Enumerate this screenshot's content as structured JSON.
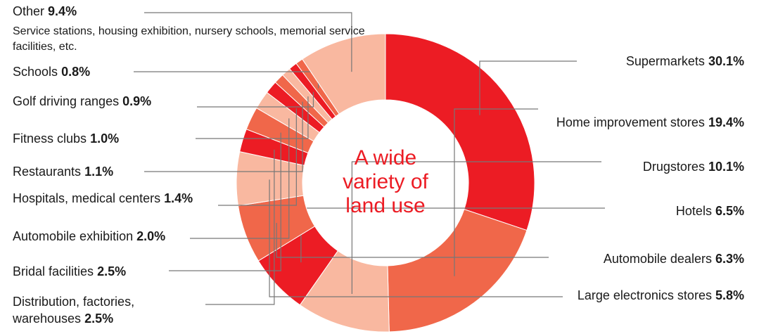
{
  "chart_data": {
    "type": "donut",
    "categories": [
      "Supermarkets",
      "Home improvement stores",
      "Drugstores",
      "Hotels",
      "Automobile dealers",
      "Large electronics stores",
      "Distribution, factories, warehouses",
      "Bridal facilities",
      "Automobile exhibition",
      "Hospitals, medical centers",
      "Restaurants",
      "Fitness clubs",
      "Golf driving ranges",
      "Schools",
      "Other"
    ],
    "values": [
      30.1,
      19.4,
      10.1,
      6.5,
      6.3,
      5.8,
      2.5,
      2.5,
      2.0,
      1.4,
      1.1,
      1.0,
      0.9,
      0.8,
      9.4
    ],
    "value_labels": [
      "30.1%",
      "19.4%",
      "10.1%",
      "6.5%",
      "6.3%",
      "5.8%",
      "2.5%",
      "2.5%",
      "2.0%",
      "1.4%",
      "1.1%",
      "1.0%",
      "0.9%",
      "0.8%",
      "9.4%"
    ],
    "colors": [
      "#ec1c24",
      "#f0674a",
      "#f9b8a0",
      "#ec1c24",
      "#f0674a",
      "#f9b8a0",
      "#ec1c24",
      "#f0674a",
      "#f9b8a0",
      "#ec1c24",
      "#f0674a",
      "#f9b8a0",
      "#ec1c24",
      "#f0674a",
      "#f9b8a0"
    ],
    "center_text": "A wide variety of land use",
    "annotation": "Service stations, housing exhibition, nursery schools, memorial service facilities, etc."
  }
}
